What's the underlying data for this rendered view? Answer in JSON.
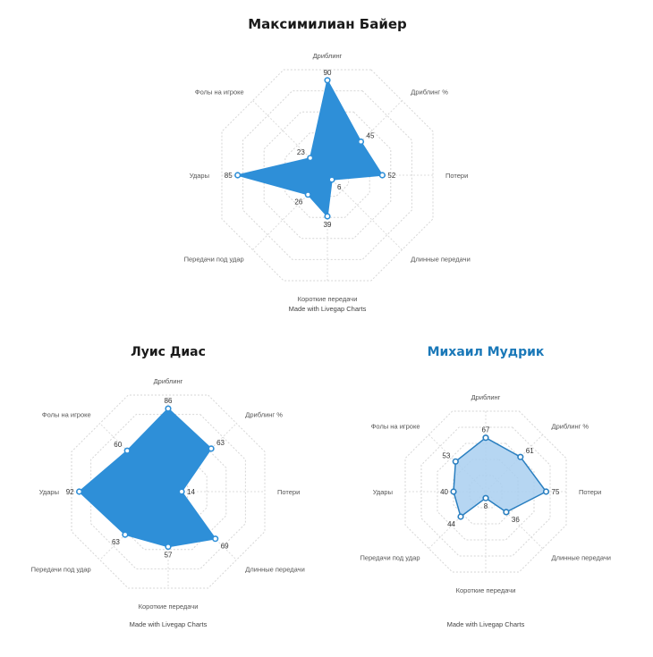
{
  "chart_data": [
    {
      "type": "radar",
      "title": "Максимилиан Байер",
      "title_color": "#1a1a1a",
      "fill_color": "#2e8fd8",
      "fill_opacity": 1.0,
      "stroke_color": "#2e8fd8",
      "footer": "Made with Livegap Charts",
      "ring_count": 5,
      "max_value": 100,
      "categories": [
        "Дриблинг",
        "Дриблинг %",
        "Потери",
        "Длинные передачи",
        "Короткие передачи",
        "Передачи под удар",
        "Удары",
        "Фолы на игроке"
      ],
      "values": [
        90,
        45,
        52,
        6,
        39,
        26,
        85,
        23
      ]
    },
    {
      "type": "radar",
      "title": "Луис Диас",
      "title_color": "#1a1a1a",
      "fill_color": "#2e8fd8",
      "fill_opacity": 1.0,
      "stroke_color": "#2e8fd8",
      "footer": "Made with Livegap Charts",
      "ring_count": 5,
      "max_value": 100,
      "categories": [
        "Дриблинг",
        "Дриблинг %",
        "Потери",
        "Длинные передачи",
        "Короткие передачи",
        "Передачи под удар",
        "Удары",
        "Фолы на игроке"
      ],
      "values": [
        86,
        63,
        14,
        69,
        57,
        63,
        92,
        60
      ]
    },
    {
      "type": "radar",
      "title": "Михаил Мудрик",
      "title_color": "#1a78b8",
      "fill_color": "#a9cff0",
      "fill_opacity": 0.85,
      "stroke_color": "#2a7fc0",
      "footer": "Made with Livegap Charts",
      "ring_count": 5,
      "max_value": 100,
      "categories": [
        "Дриблинг",
        "Дриблинг %",
        "Потери",
        "Длинные передачи",
        "Короткие передачи",
        "Передачи под удар",
        "Удары",
        "Фолы на игроке"
      ],
      "values": [
        67,
        61,
        75,
        36,
        8,
        44,
        40,
        53
      ]
    }
  ]
}
